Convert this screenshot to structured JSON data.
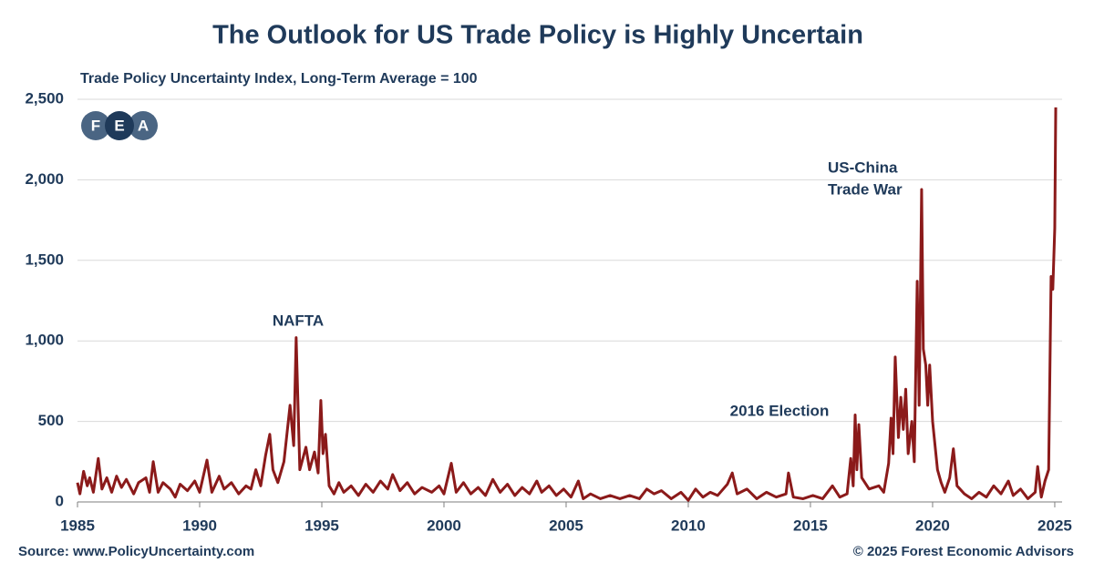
{
  "chart_data": {
    "type": "line",
    "title": "The Outlook for US Trade Policy is Highly Uncertain",
    "subtitle": "Trade Policy Uncertainty Index, Long-Term Average = 100",
    "source": "Source: www.PolicyUncertainty.com",
    "copyright": "© 2025 Forest Economic Advisors",
    "logo": [
      "F",
      "E",
      "A"
    ],
    "annotations": [
      "NAFTA",
      "US-China",
      "Trade War",
      "2016 Election"
    ],
    "color": "#8b1a1a",
    "grid": true,
    "xlim": [
      1985,
      2025.3
    ],
    "xticks": [
      1985,
      1990,
      1995,
      2000,
      2005,
      2010,
      2015,
      2020,
      2025
    ],
    "ylim": [
      0,
      2500
    ],
    "yticks": [
      0,
      500,
      {
        "value": 1000,
        "label": "1,000"
      },
      {
        "value": 1500,
        "label": "1,500"
      },
      {
        "value": 2000,
        "label": "2,000"
      },
      {
        "value": 2500,
        "label": "2,500"
      }
    ],
    "x": [
      1985.0,
      1985.1,
      1985.25,
      1985.4,
      1985.5,
      1985.65,
      1985.85,
      1986.0,
      1986.2,
      1986.4,
      1986.6,
      1986.8,
      1987.0,
      1987.3,
      1987.5,
      1987.8,
      1987.95,
      1988.1,
      1988.3,
      1988.5,
      1988.8,
      1989.0,
      1989.2,
      1989.5,
      1989.8,
      1990.0,
      1990.3,
      1990.5,
      1990.8,
      1991.0,
      1991.3,
      1991.6,
      1991.9,
      1992.1,
      1992.3,
      1992.5,
      1992.7,
      1992.87,
      1993.0,
      1993.2,
      1993.45,
      1993.7,
      1993.85,
      1993.95,
      1994.1,
      1994.35,
      1994.5,
      1994.7,
      1994.85,
      1994.96,
      1995.05,
      1995.15,
      1995.3,
      1995.5,
      1995.7,
      1995.9,
      1996.2,
      1996.5,
      1996.8,
      1997.1,
      1997.4,
      1997.7,
      1997.9,
      1998.2,
      1998.5,
      1998.8,
      1999.1,
      1999.5,
      1999.8,
      2000.0,
      2000.3,
      2000.5,
      2000.8,
      2001.1,
      2001.4,
      2001.7,
      2002.0,
      2002.3,
      2002.6,
      2002.9,
      2003.2,
      2003.5,
      2003.8,
      2004.0,
      2004.3,
      2004.6,
      2004.9,
      2005.2,
      2005.5,
      2005.7,
      2006.0,
      2006.4,
      2006.8,
      2007.2,
      2007.6,
      2008.0,
      2008.3,
      2008.6,
      2008.9,
      2009.3,
      2009.7,
      2010.0,
      2010.3,
      2010.6,
      2010.9,
      2011.2,
      2011.6,
      2011.8,
      2012.0,
      2012.4,
      2012.8,
      2013.2,
      2013.6,
      2014.0,
      2014.1,
      2014.3,
      2014.7,
      2015.1,
      2015.5,
      2015.9,
      2016.2,
      2016.5,
      2016.65,
      2016.75,
      2016.83,
      2016.9,
      2016.98,
      2017.1,
      2017.4,
      2017.8,
      2018.0,
      2018.2,
      2018.3,
      2018.38,
      2018.47,
      2018.6,
      2018.7,
      2018.8,
      2018.9,
      2019.0,
      2019.15,
      2019.25,
      2019.37,
      2019.45,
      2019.55,
      2019.62,
      2019.72,
      2019.8,
      2019.88,
      2020.0,
      2020.2,
      2020.35,
      2020.5,
      2020.7,
      2020.85,
      2021.0,
      2021.3,
      2021.6,
      2021.9,
      2022.2,
      2022.5,
      2022.8,
      2023.1,
      2023.3,
      2023.6,
      2023.9,
      2024.2,
      2024.3,
      2024.45,
      2024.6,
      2024.75,
      2024.85,
      2024.92,
      2025.0,
      2025.04
    ],
    "values": [
      120,
      50,
      190,
      100,
      150,
      60,
      270,
      80,
      150,
      60,
      160,
      90,
      140,
      50,
      120,
      150,
      60,
      250,
      60,
      120,
      80,
      30,
      110,
      70,
      130,
      60,
      260,
      60,
      160,
      80,
      120,
      50,
      100,
      80,
      200,
      100,
      290,
      420,
      200,
      120,
      250,
      600,
      350,
      1020,
      200,
      340,
      200,
      310,
      180,
      630,
      300,
      420,
      100,
      50,
      120,
      60,
      100,
      40,
      110,
      60,
      130,
      80,
      170,
      70,
      120,
      50,
      90,
      60,
      100,
      50,
      240,
      60,
      120,
      50,
      90,
      40,
      140,
      60,
      110,
      40,
      90,
      50,
      130,
      60,
      100,
      40,
      80,
      30,
      130,
      20,
      50,
      20,
      40,
      20,
      40,
      20,
      80,
      50,
      70,
      20,
      60,
      10,
      80,
      30,
      60,
      40,
      110,
      180,
      50,
      80,
      20,
      60,
      30,
      50,
      180,
      30,
      20,
      40,
      20,
      100,
      30,
      50,
      270,
      100,
      540,
      200,
      480,
      150,
      80,
      100,
      60,
      240,
      520,
      300,
      900,
      400,
      650,
      450,
      700,
      300,
      500,
      250,
      1370,
      600,
      1940,
      950,
      850,
      600,
      850,
      500,
      200,
      120,
      60,
      150,
      330,
      100,
      50,
      20,
      60,
      30,
      100,
      50,
      130,
      40,
      80,
      20,
      60,
      220,
      30,
      130,
      200,
      1400,
      1320,
      1700,
      2450
    ]
  }
}
